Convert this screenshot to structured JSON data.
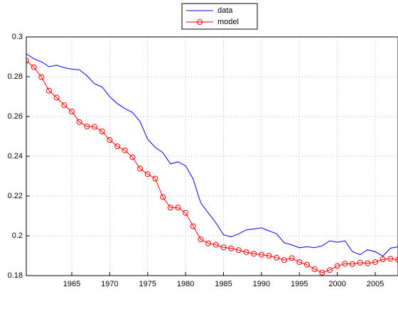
{
  "chart_data": {
    "type": "line",
    "x": [
      1959,
      1960,
      1961,
      1962,
      1963,
      1964,
      1965,
      1966,
      1967,
      1968,
      1969,
      1970,
      1971,
      1972,
      1973,
      1974,
      1975,
      1976,
      1977,
      1978,
      1979,
      1980,
      1981,
      1982,
      1983,
      1984,
      1985,
      1986,
      1987,
      1988,
      1989,
      1990,
      1991,
      1992,
      1993,
      1994,
      1995,
      1996,
      1997,
      1998,
      1999,
      2000,
      2001,
      2002,
      2003,
      2004,
      2005,
      2006,
      2007,
      2008
    ],
    "series": [
      {
        "name": "data",
        "color": "#0000ff",
        "marker": "none",
        "values": [
          0.2915,
          0.289,
          0.2875,
          0.285,
          0.2858,
          0.2845,
          0.2838,
          0.2835,
          0.2805,
          0.2765,
          0.2748,
          0.27,
          0.2665,
          0.264,
          0.262,
          0.2575,
          0.2485,
          0.2445,
          0.2418,
          0.2362,
          0.2372,
          0.2352,
          0.2285,
          0.2165,
          0.2115,
          0.2065,
          0.2005,
          0.1995,
          0.201,
          0.203,
          0.2035,
          0.204,
          0.2025,
          0.201,
          0.1965,
          0.1955,
          0.194,
          0.1945,
          0.194,
          0.195,
          0.1975,
          0.1968,
          0.1975,
          0.192,
          0.1905,
          0.193,
          0.192,
          0.1898,
          0.1938,
          0.1945
        ]
      },
      {
        "name": "model",
        "color": "#ff0000",
        "marker": "o",
        "values": [
          0.288,
          0.2848,
          0.2798,
          0.273,
          0.2695,
          0.2657,
          0.2625,
          0.2572,
          0.255,
          0.2548,
          0.2525,
          0.2482,
          0.245,
          0.243,
          0.2395,
          0.2338,
          0.231,
          0.2288,
          0.2195,
          0.2142,
          0.2142,
          0.2115,
          0.2048,
          0.1982,
          0.1962,
          0.1955,
          0.1942,
          0.1937,
          0.1928,
          0.1918,
          0.191,
          0.1905,
          0.19,
          0.189,
          0.1878,
          0.1888,
          0.1868,
          0.1855,
          0.1832,
          0.1815,
          0.1828,
          0.1848,
          0.186,
          0.1858,
          0.1865,
          0.1862,
          0.1868,
          0.1882,
          0.1885,
          0.188
        ]
      }
    ],
    "xlim": [
      1959,
      2008
    ],
    "xticks": [
      1965,
      1970,
      1975,
      1980,
      1985,
      1990,
      1995,
      2000,
      2005
    ],
    "ylim": [
      0.18,
      0.3
    ],
    "yticks": [
      0.18,
      0.2,
      0.22,
      0.24,
      0.26,
      0.28,
      0.3
    ],
    "grid": true,
    "legend": "north-outside"
  }
}
